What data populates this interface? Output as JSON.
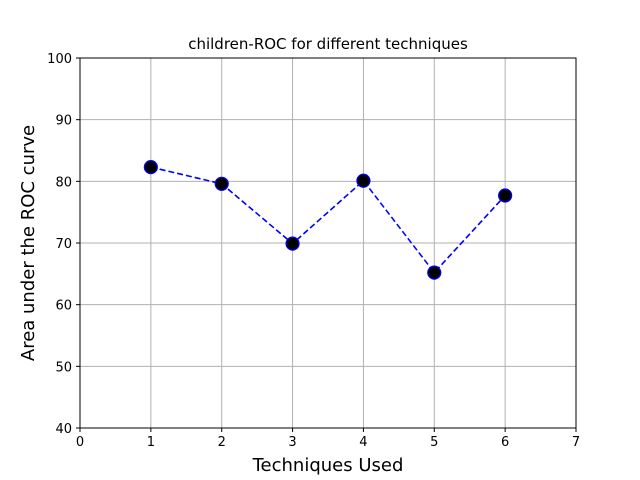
{
  "chart_data": {
    "type": "line",
    "title": "children-ROC for different techniques",
    "xlabel": "Techniques Used",
    "ylabel": "Area under the ROC curve",
    "xlim": [
      0,
      7
    ],
    "ylim": [
      40,
      100
    ],
    "xticks": [
      0,
      1,
      2,
      3,
      4,
      5,
      6,
      7
    ],
    "yticks": [
      40,
      50,
      60,
      70,
      80,
      90,
      100
    ],
    "grid": true,
    "series": [
      {
        "x": [
          1,
          2,
          3,
          4,
          5,
          6
        ],
        "values": [
          82.3,
          79.6,
          69.9,
          80.1,
          65.2,
          77.7
        ],
        "line_color": "#0000ff",
        "line_style": "dashed",
        "marker": "circle",
        "marker_face_color": "#000000",
        "marker_edge_color": "#0000ff"
      }
    ]
  }
}
